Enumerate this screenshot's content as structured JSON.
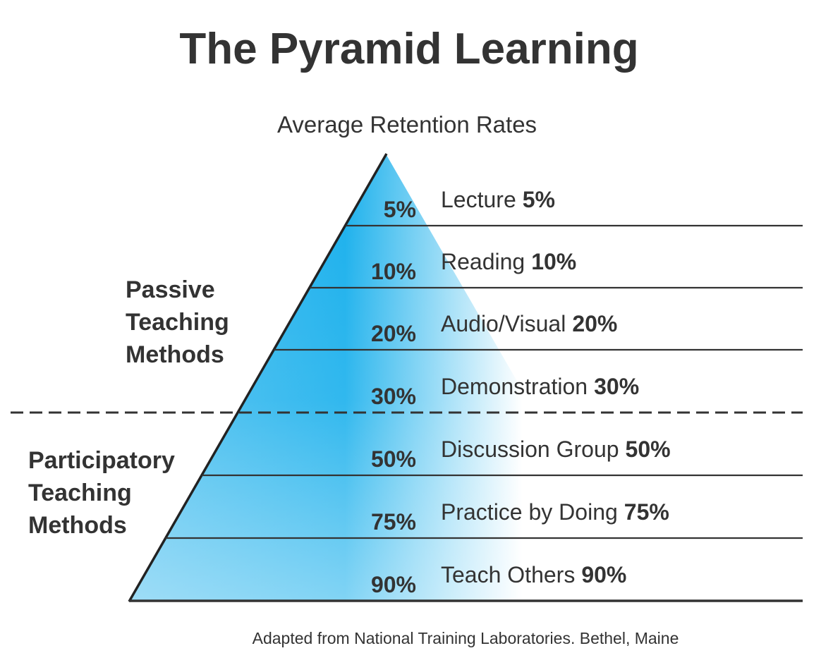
{
  "title": "The Pyramid Learning",
  "subtitle": "Average Retention Rates",
  "groups": [
    {
      "lines": [
        "Passive",
        "Teaching",
        "Methods"
      ]
    },
    {
      "lines": [
        "Participatory",
        "Teaching",
        "Methods"
      ]
    }
  ],
  "levels": [
    {
      "percent": "5%",
      "name": "Lecture",
      "value": "5%"
    },
    {
      "percent": "10%",
      "name": "Reading",
      "value": "10%"
    },
    {
      "percent": "20%",
      "name": "Audio/Visual",
      "value": "20%"
    },
    {
      "percent": "30%",
      "name": "Demonstration",
      "value": "30%"
    },
    {
      "percent": "50%",
      "name": "Discussion Group",
      "value": "50%"
    },
    {
      "percent": "75%",
      "name": "Practice by Doing",
      "value": "75%"
    },
    {
      "percent": "90%",
      "name": "Teach Others",
      "value": "90%"
    }
  ],
  "footer": "Adapted from National Training Laboratories. Bethel, Maine",
  "colors": {
    "pyramid_fill": "#1ab0ec",
    "text": "#333333",
    "lines": "#333333"
  }
}
